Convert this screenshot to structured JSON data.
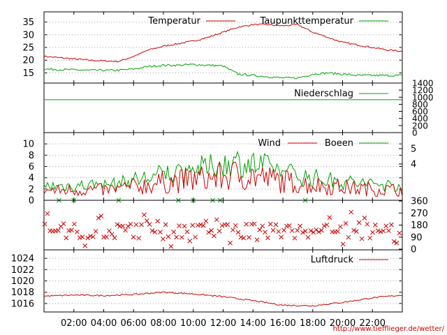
{
  "colors": {
    "red": "#cc0000",
    "green": "#00a000",
    "axis": "#000000",
    "grid": "#a0a0a0"
  },
  "x_ticks": [
    "02:00",
    "04:00",
    "06:00",
    "08:00",
    "10:00",
    "12:00",
    "14:00",
    "16:00",
    "18:00",
    "20:00",
    "22:00"
  ],
  "url": "http://www.tiefflieger.de/wetter/",
  "chart_data": [
    {
      "type": "line",
      "legend": [
        "Temperatur",
        "Taupunkttemperatur"
      ],
      "y_ticks": [
        "35",
        "30",
        "25",
        "20",
        "15"
      ],
      "ylim": [
        11,
        39
      ],
      "x": [
        0,
        1,
        2,
        3,
        4,
        5,
        6,
        7,
        8,
        9,
        10,
        11,
        12,
        13,
        14,
        15,
        16,
        17,
        18,
        19,
        20,
        21,
        22,
        23,
        24
      ],
      "series": [
        {
          "name": "Temperatur",
          "values": [
            21.5,
            21,
            20.5,
            20,
            19.7,
            19.5,
            21.5,
            24,
            25.5,
            26.5,
            27.5,
            29,
            31,
            33,
            34,
            34,
            33.5,
            34,
            31,
            29,
            27,
            26,
            25,
            24,
            23.5
          ]
        },
        {
          "name": "Taupunkttemperatur",
          "values": [
            16.5,
            16.3,
            16.2,
            16,
            16,
            16,
            16.5,
            17.5,
            18,
            18,
            18.3,
            18,
            17.7,
            14.5,
            14,
            13.5,
            13,
            13,
            14.5,
            15,
            14.5,
            14,
            14,
            14,
            14
          ]
        }
      ]
    },
    {
      "type": "line",
      "legend": [
        "Niederschlag"
      ],
      "y_ticks": [
        "1400",
        "1200",
        "1000",
        "800",
        "600",
        "400",
        "200",
        "0"
      ],
      "ylim": [
        0,
        1400
      ],
      "series": [
        {
          "name": "Niederschlag",
          "values": [
            930,
            930
          ]
        }
      ]
    },
    {
      "type": "line",
      "legend": [
        "Wind",
        "Boeen"
      ],
      "y_ticks": [
        "10",
        "8",
        "6",
        "4",
        "2",
        "0"
      ],
      "right_ticks": [
        "5",
        "4"
      ],
      "ylim": [
        0,
        12
      ],
      "x": [
        0,
        1,
        2,
        3,
        4,
        5,
        6,
        7,
        8,
        9,
        10,
        11,
        12,
        13,
        14,
        15,
        16,
        17,
        18,
        19,
        20,
        21,
        22,
        23,
        24
      ],
      "series": [
        {
          "name": "Wind",
          "values": [
            1.8,
            1.7,
            1.8,
            1.9,
            1.8,
            2,
            2.4,
            2.8,
            3.2,
            3.4,
            3.7,
            3.9,
            4.2,
            4.5,
            4.3,
            3.8,
            3.4,
            3,
            2.7,
            2.5,
            2.3,
            2.1,
            2,
            1.9,
            1.8
          ]
        },
        {
          "name": "Boeen",
          "values": [
            2.6,
            2.5,
            2.6,
            2.7,
            2.6,
            2.9,
            3.5,
            4,
            4.6,
            4.9,
            5.3,
            5.6,
            6.1,
            6.6,
            6.3,
            5.6,
            5,
            4.4,
            3.9,
            3.6,
            3.3,
            3,
            2.9,
            2.7,
            2.6
          ]
        }
      ]
    },
    {
      "type": "scatter",
      "right_ticks": [
        "360",
        "270",
        "180",
        "90",
        "0"
      ],
      "ylim": [
        0,
        360
      ],
      "modal_directions": [
        90,
        135,
        180
      ]
    },
    {
      "type": "line",
      "legend": [
        "Luftdruck"
      ],
      "y_ticks": [
        "1024",
        "1022",
        "1020",
        "1018",
        "1016"
      ],
      "ylim": [
        1014.5,
        1025.5
      ],
      "x": [
        0,
        2,
        4,
        6,
        8,
        10,
        12,
        14,
        16,
        18,
        20,
        22,
        24
      ],
      "series": [
        {
          "name": "Luftdruck",
          "values": [
            1017.3,
            1017.5,
            1017.4,
            1017.6,
            1018,
            1017.7,
            1017.2,
            1016.5,
            1015.7,
            1015.6,
            1016.2,
            1017,
            1017.5
          ]
        }
      ]
    }
  ]
}
